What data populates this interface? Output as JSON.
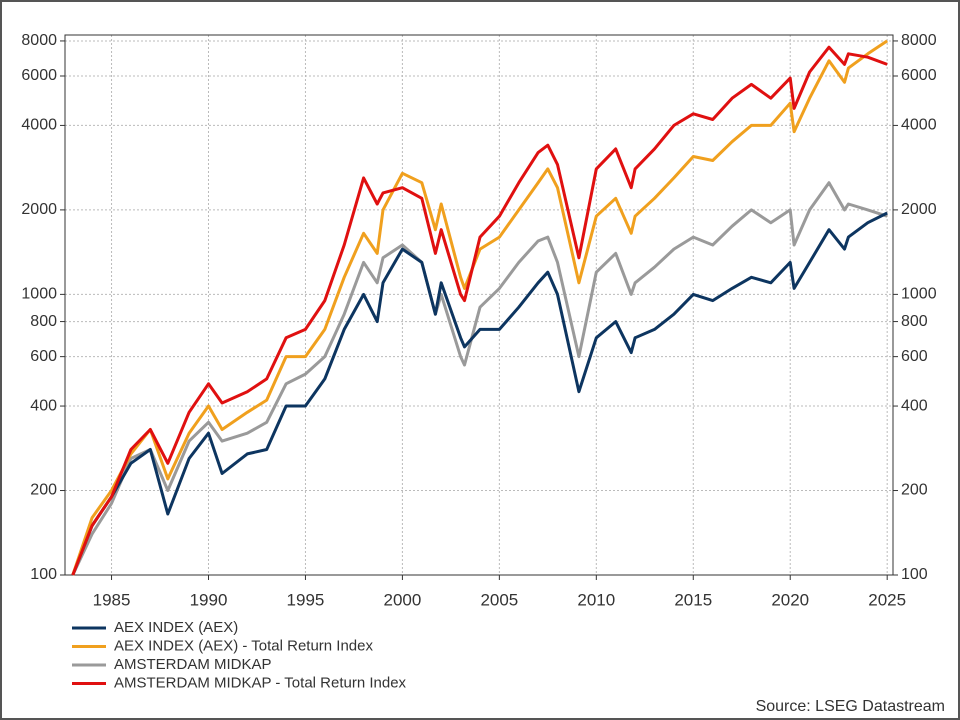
{
  "chart_data": {
    "type": "line",
    "ylog": true,
    "grid": true,
    "legend": "bottom-left",
    "source": "Source: LSEG Datastream",
    "xlim": [
      1982.6,
      2025.3
    ],
    "xticks": [
      1985,
      1990,
      1995,
      2000,
      2005,
      2010,
      2015,
      2020,
      2025
    ],
    "ylim": [
      100,
      8400
    ],
    "yticks": [
      100,
      200,
      400,
      600,
      800,
      1000,
      2000,
      4000,
      6000,
      8000
    ],
    "x": [
      1983,
      1984,
      1985,
      1986,
      1987,
      1987.9,
      1989,
      1990,
      1990.7,
      1992,
      1993,
      1994,
      1995,
      1996,
      1997,
      1998,
      1998.7,
      1999,
      2000,
      2001,
      2001.7,
      2002,
      2003,
      2003.2,
      2004,
      2005,
      2006,
      2007,
      2007.5,
      2008,
      2009.1,
      2010,
      2011,
      2011.8,
      2012,
      2013,
      2014,
      2015,
      2016,
      2017,
      2018,
      2019,
      2020,
      2020.2,
      2021,
      2022,
      2022.8,
      2023,
      2024,
      2025
    ],
    "series": [
      {
        "name": "AEX INDEX (AEX)",
        "color": "#0d3560",
        "values": [
          100,
          150,
          190,
          250,
          280,
          165,
          260,
          320,
          230,
          270,
          280,
          400,
          400,
          500,
          750,
          1000,
          800,
          1100,
          1450,
          1300,
          850,
          1100,
          700,
          650,
          750,
          750,
          900,
          1100,
          1200,
          1000,
          450,
          700,
          800,
          620,
          700,
          750,
          850,
          1000,
          950,
          1050,
          1150,
          1100,
          1300,
          1050,
          1300,
          1700,
          1450,
          1600,
          1800,
          1950
        ]
      },
      {
        "name": "AEX INDEX (AEX) - Total Return Index",
        "color": "#f0a01e",
        "values": [
          100,
          160,
          200,
          270,
          330,
          220,
          320,
          400,
          330,
          380,
          420,
          600,
          600,
          750,
          1150,
          1650,
          1400,
          2000,
          2700,
          2500,
          1700,
          2100,
          1150,
          1050,
          1450,
          1600,
          2000,
          2500,
          2800,
          2400,
          1100,
          1900,
          2200,
          1650,
          1900,
          2200,
          2600,
          3100,
          3000,
          3500,
          4000,
          4000,
          4800,
          3800,
          5000,
          6800,
          5700,
          6400,
          7200,
          8000
        ]
      },
      {
        "name": "AMSTERDAM MIDKAP",
        "color": "#9a9a9a",
        "values": [
          100,
          140,
          180,
          260,
          280,
          200,
          300,
          350,
          300,
          320,
          350,
          480,
          520,
          600,
          850,
          1300,
          1100,
          1350,
          1500,
          1300,
          850,
          1000,
          600,
          560,
          900,
          1050,
          1300,
          1550,
          1600,
          1300,
          600,
          1200,
          1400,
          1000,
          1100,
          1250,
          1450,
          1600,
          1500,
          1750,
          2000,
          1800,
          2000,
          1500,
          2000,
          2500,
          2000,
          2100,
          2000,
          1900
        ]
      },
      {
        "name": "AMSTERDAM MIDKAP - Total Return Index",
        "color": "#e01010",
        "values": [
          100,
          150,
          190,
          280,
          330,
          250,
          380,
          480,
          410,
          450,
          500,
          700,
          750,
          950,
          1500,
          2600,
          2100,
          2300,
          2400,
          2200,
          1400,
          1700,
          1000,
          950,
          1600,
          1900,
          2500,
          3200,
          3400,
          2900,
          1350,
          2800,
          3300,
          2400,
          2800,
          3300,
          4000,
          4400,
          4200,
          5000,
          5600,
          5000,
          5900,
          4600,
          6200,
          7600,
          6600,
          7200,
          7000,
          6600
        ]
      }
    ]
  }
}
